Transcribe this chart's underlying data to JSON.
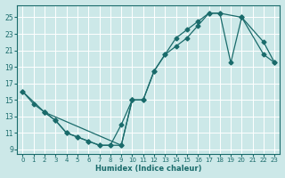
{
  "xlabel": "Humidex (Indice chaleur)",
  "bg_color": "#cce8e8",
  "line_color": "#1a6b6b",
  "xlim": [
    -0.5,
    23.5
  ],
  "ylim": [
    8.5,
    26.5
  ],
  "xticks": [
    0,
    1,
    2,
    3,
    4,
    5,
    6,
    7,
    8,
    9,
    10,
    11,
    12,
    13,
    14,
    15,
    16,
    17,
    18,
    19,
    20,
    21,
    22,
    23
  ],
  "yticks": [
    9,
    11,
    13,
    15,
    17,
    19,
    21,
    23,
    25
  ],
  "line1_x": [
    0,
    1,
    2,
    3,
    4,
    5,
    6,
    7,
    8,
    9,
    10,
    11,
    12,
    13,
    14,
    15,
    16,
    17,
    18,
    20,
    22,
    23
  ],
  "line1_y": [
    16,
    14.5,
    13.5,
    12.5,
    11.0,
    10.5,
    10.0,
    9.5,
    9.5,
    9.5,
    15.0,
    15.0,
    18.5,
    20.5,
    21.5,
    22.5,
    24.0,
    25.5,
    25.5,
    25.0,
    20.5,
    19.5
  ],
  "line2_x": [
    0,
    2,
    9,
    10,
    11,
    12,
    13,
    14,
    15,
    16,
    17,
    18,
    19,
    20,
    22,
    23
  ],
  "line2_y": [
    16,
    13.5,
    9.5,
    15.0,
    15.0,
    18.5,
    20.5,
    22.5,
    23.5,
    24.5,
    25.5,
    25.5,
    19.5,
    25.0,
    22.0,
    19.5
  ],
  "line3_x": [
    2,
    3,
    4,
    5,
    6,
    7,
    8,
    9,
    10
  ],
  "line3_y": [
    13.5,
    12.5,
    11.0,
    10.5,
    10.0,
    9.5,
    9.5,
    12.0,
    15.0
  ]
}
